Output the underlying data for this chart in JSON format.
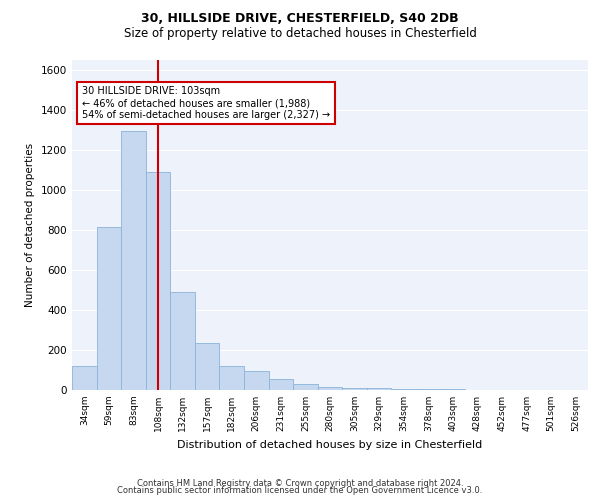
{
  "title1": "30, HILLSIDE DRIVE, CHESTERFIELD, S40 2DB",
  "title2": "Size of property relative to detached houses in Chesterfield",
  "xlabel": "Distribution of detached houses by size in Chesterfield",
  "ylabel": "Number of detached properties",
  "categories": [
    "34sqm",
    "59sqm",
    "83sqm",
    "108sqm",
    "132sqm",
    "157sqm",
    "182sqm",
    "206sqm",
    "231sqm",
    "255sqm",
    "280sqm",
    "305sqm",
    "329sqm",
    "354sqm",
    "378sqm",
    "403sqm",
    "428sqm",
    "452sqm",
    "477sqm",
    "501sqm",
    "526sqm"
  ],
  "values": [
    120,
    815,
    1295,
    1090,
    490,
    235,
    120,
    95,
    55,
    30,
    15,
    10,
    8,
    5,
    4,
    3,
    2,
    2,
    1,
    1,
    1
  ],
  "bar_color": "#c5d8f0",
  "bar_edge_color": "#8ab4d8",
  "annotation_line1": "30 HILLSIDE DRIVE: 103sqm",
  "annotation_line2": "← 46% of detached houses are smaller (1,988)",
  "annotation_line3": "54% of semi-detached houses are larger (2,327) →",
  "annotation_box_color": "#ffffff",
  "annotation_box_edge_color": "#cc0000",
  "vline_color": "#cc0000",
  "footer1": "Contains HM Land Registry data © Crown copyright and database right 2024.",
  "footer2": "Contains public sector information licensed under the Open Government Licence v3.0.",
  "ylim": [
    0,
    1650
  ],
  "vline_x": 3.0,
  "bg_color": "#eef2fb"
}
